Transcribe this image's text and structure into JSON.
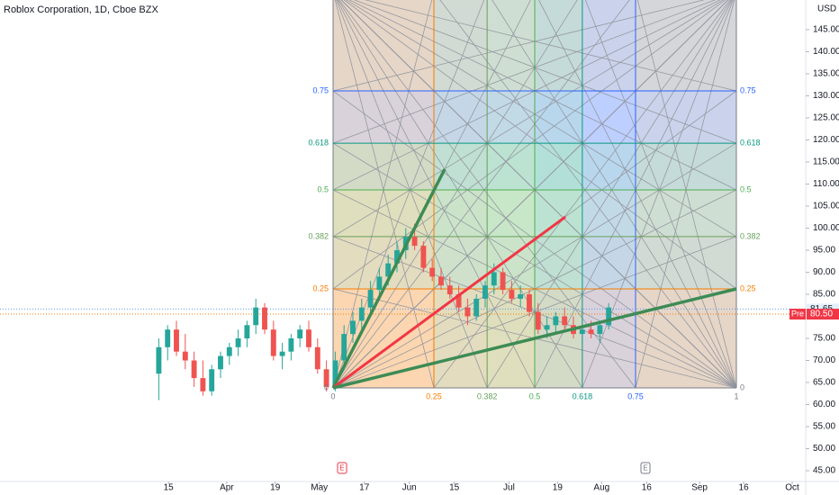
{
  "chart_data": {
    "type": "candlestick",
    "title": "Roblox Corporation, 1D, Cboe BZX",
    "currency": "USD",
    "up_color": "#26a69a",
    "down_color": "#ef5350",
    "xlim": [
      0,
      91.33
    ],
    "ylim": [
      42.55,
      151.73
    ],
    "grid": false,
    "xticks": [
      {
        "value": 19.1,
        "label": "15"
      },
      {
        "value": 25.7,
        "label": "Apr"
      },
      {
        "value": 31.2,
        "label": "19"
      },
      {
        "value": 36.2,
        "label": "May"
      },
      {
        "value": 41.3,
        "label": "17"
      },
      {
        "value": 46.4,
        "label": "Jun"
      },
      {
        "value": 51.5,
        "label": "15"
      },
      {
        "value": 57.7,
        "label": "Jul"
      },
      {
        "value": 63.2,
        "label": "19"
      },
      {
        "value": 68.2,
        "label": "Aug"
      },
      {
        "value": 73.3,
        "label": "16"
      },
      {
        "value": 79.3,
        "label": "Sep"
      },
      {
        "value": 84.3,
        "label": "16"
      },
      {
        "value": 89.8,
        "label": "Oct"
      }
    ],
    "yticks": [
      {
        "value": 145,
        "label": "145.00"
      },
      {
        "value": 140,
        "label": "140.00"
      },
      {
        "value": 135,
        "label": "135.00"
      },
      {
        "value": 130,
        "label": "130.00"
      },
      {
        "value": 125,
        "label": "125.00"
      },
      {
        "value": 120,
        "label": "120.00"
      },
      {
        "value": 115,
        "label": "115.00"
      },
      {
        "value": 110,
        "label": "110.00"
      },
      {
        "value": 105,
        "label": "105.00"
      },
      {
        "value": 100,
        "label": "100.00"
      },
      {
        "value": 95,
        "label": "95.00"
      },
      {
        "value": 90,
        "label": "90.00"
      },
      {
        "value": 85,
        "label": "85.00"
      },
      {
        "value": 75,
        "label": "75.00"
      },
      {
        "value": 70,
        "label": "70.00"
      },
      {
        "value": 65,
        "label": "65.00"
      },
      {
        "value": 60,
        "label": "60.00"
      },
      {
        "value": 55,
        "label": "55.00"
      },
      {
        "value": 50,
        "label": "50.00"
      },
      {
        "value": 45,
        "label": "45.00"
      }
    ],
    "candles": {
      "x": [
        18,
        19,
        20,
        21,
        22,
        23,
        24,
        25,
        26,
        27,
        28,
        29,
        30,
        31,
        32,
        33,
        34,
        35,
        36,
        37,
        38,
        39,
        40,
        41,
        42,
        43,
        44,
        45,
        46,
        47,
        48,
        49,
        50,
        51,
        52,
        53,
        54,
        55,
        56,
        57,
        58,
        59,
        60,
        61,
        62,
        63,
        64,
        65,
        66,
        67,
        68,
        69
      ],
      "open": [
        67,
        73,
        77,
        72,
        70,
        66,
        63,
        68,
        71,
        73,
        75,
        78,
        82,
        77,
        71,
        72,
        75,
        77,
        73,
        68,
        64,
        70,
        76,
        79,
        82,
        86,
        89,
        92,
        95,
        98,
        96,
        91,
        89,
        87,
        85,
        82,
        80,
        84,
        87,
        90,
        86,
        84,
        85,
        81,
        77,
        78,
        80,
        78,
        76,
        77,
        76,
        78
      ],
      "high": [
        75,
        78,
        79,
        76,
        72,
        70,
        69,
        72,
        74,
        77,
        79,
        84,
        83,
        79,
        74,
        76,
        78,
        79,
        75,
        70,
        72,
        78,
        81,
        84,
        88,
        91,
        94,
        97,
        100,
        101,
        97,
        93,
        91,
        89,
        87,
        84,
        85,
        88,
        92,
        91,
        88,
        87,
        86,
        83,
        80,
        81,
        82,
        80,
        78,
        79,
        79,
        83
      ],
      "low": [
        61,
        70,
        71,
        68,
        64,
        62,
        62,
        66,
        69,
        71,
        73,
        76,
        76,
        70,
        68,
        70,
        73,
        72,
        67,
        63,
        63,
        69,
        74,
        77,
        80,
        84,
        87,
        90,
        93,
        95,
        90,
        88,
        86,
        84,
        81,
        78,
        79,
        82,
        85,
        85,
        83,
        82,
        80,
        76,
        75,
        76,
        77,
        75,
        74,
        75,
        74,
        77
      ],
      "close": [
        73,
        77,
        72,
        70,
        66,
        63,
        68,
        71,
        73,
        75,
        78,
        82,
        77,
        71,
        72,
        75,
        77,
        73,
        68,
        64,
        70,
        76,
        79,
        82,
        86,
        89,
        92,
        95,
        98,
        96,
        91,
        89,
        87,
        85,
        82,
        80,
        84,
        87,
        90,
        86,
        84,
        85,
        81,
        77,
        78,
        80,
        78,
        76,
        77,
        76,
        78,
        82
      ]
    },
    "last_price": 81.65,
    "premarket": {
      "label": "Pre",
      "value": 80.5,
      "value_label": "80.50"
    },
    "gann_box": {
      "price_levels": [
        0,
        0.25,
        0.382,
        0.5,
        0.618,
        0.75
      ],
      "time_levels": [
        0,
        0.25,
        0.382,
        0.5,
        0.618,
        0.75,
        1
      ],
      "level_colors": [
        "#787b86",
        "#f57c00",
        "#66a05a",
        "#4caf50",
        "#089981",
        "#2962ff",
        "#787b86"
      ]
    },
    "events": [
      {
        "label": "E",
        "color": "#f23645"
      },
      {
        "label": "E",
        "color": "#787b86"
      }
    ]
  }
}
